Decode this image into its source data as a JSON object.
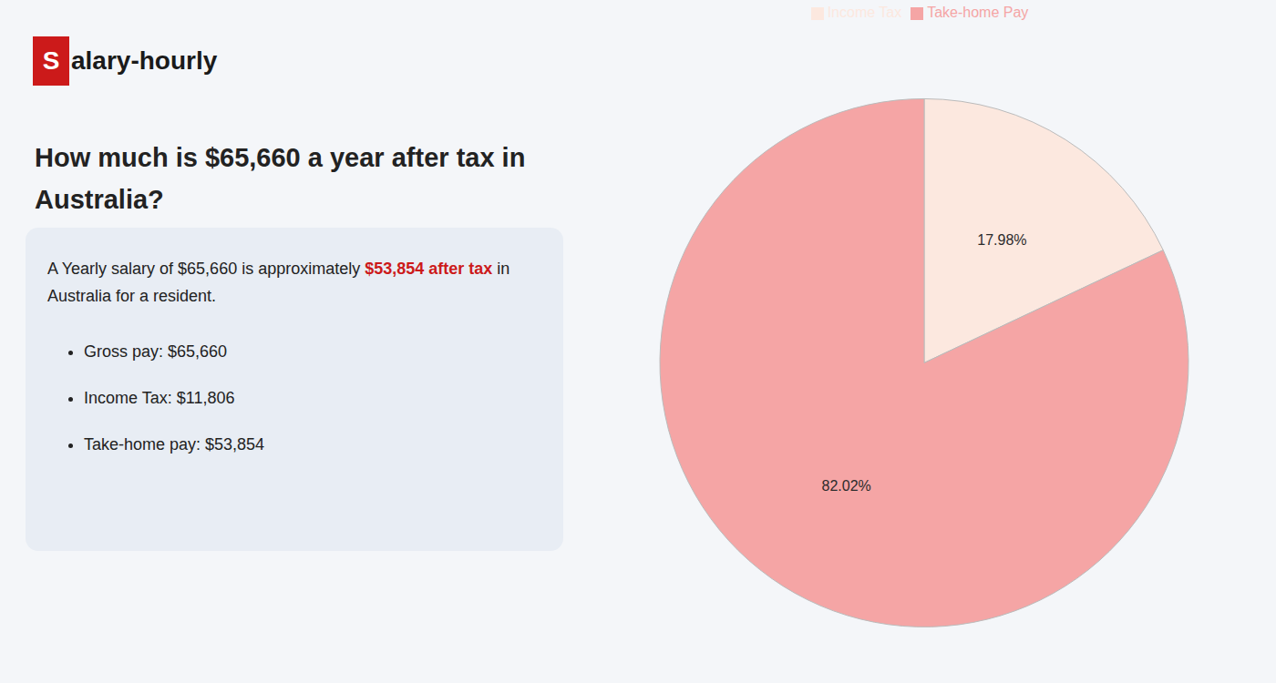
{
  "chart_data": {
    "type": "pie",
    "title": "How much is $65,660 a year after tax in Australia?",
    "categories": [
      "Income Tax",
      "Take-home Pay"
    ],
    "values": [
      17.98,
      82.02
    ],
    "value_labels": [
      "17.98%",
      "82.02%"
    ],
    "colors": [
      "#fce8df",
      "#f5a5a5"
    ],
    "data_labels": true,
    "legend": "top",
    "annotations": [
      {
        "text": "S",
        "color": "#cc1a1a"
      },
      {
        "text": "alary-hourly"
      },
      {
        "text": "A Yearly salary of $65,660 is approximately "
      },
      {
        "text": "$53,854 after tax",
        "color": "#cc1a1a"
      },
      {
        "text": " in"
      },
      {
        "text": "Australia for a resident."
      },
      {
        "text": "Gross pay: $65,660"
      },
      {
        "text": "Income Tax: $11,806"
      },
      {
        "text": "Take-home pay: $53,854"
      }
    ]
  }
}
